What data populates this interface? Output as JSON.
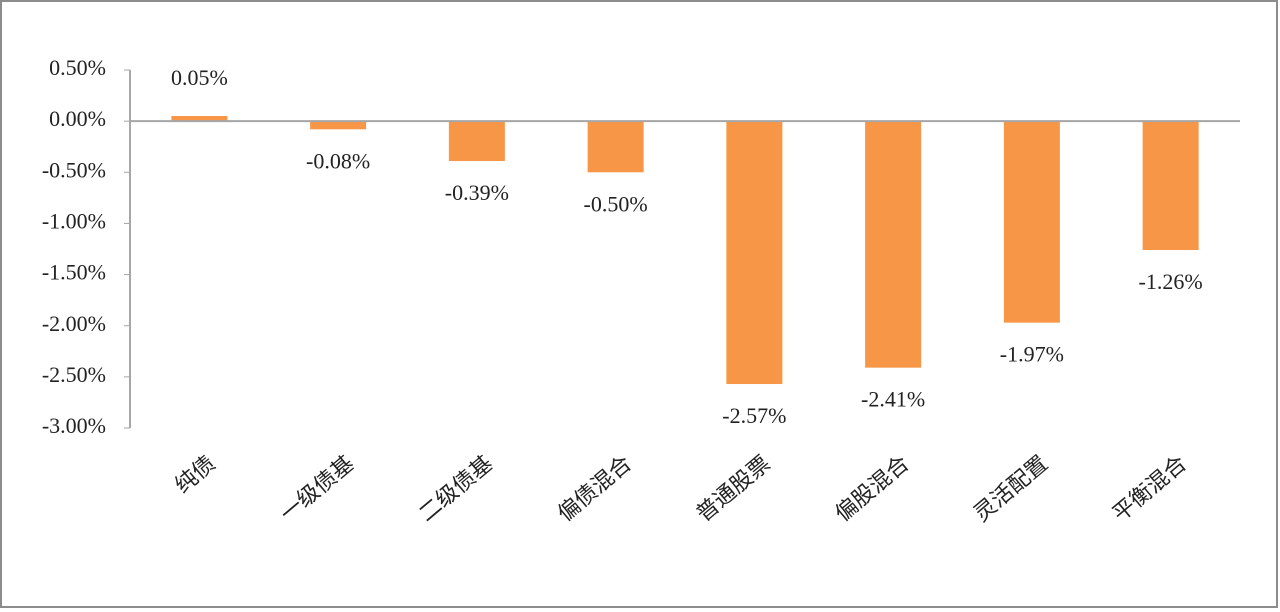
{
  "chart_data": {
    "type": "bar",
    "categories": [
      "纯债",
      "一级债基",
      "二级债基",
      "偏债混合",
      "普通股票",
      "偏股混合",
      "灵活配置",
      "平衡混合"
    ],
    "values": [
      0.05,
      -0.08,
      -0.39,
      -0.5,
      -2.57,
      -2.41,
      -1.97,
      -1.26
    ],
    "value_labels": [
      "0.05%",
      "-0.08%",
      "-0.39%",
      "-0.50%",
      "-2.57%",
      "-2.41%",
      "-1.97%",
      "-1.26%"
    ],
    "color": "#f79646",
    "ylim": [
      -3,
      0.5
    ],
    "yticks": [
      {
        "value": 0.5,
        "label": "0.50%"
      },
      {
        "value": 0,
        "label": "0.00%"
      },
      {
        "value": -0.5,
        "label": "-0.50%"
      },
      {
        "value": -1,
        "label": "-1.00%"
      },
      {
        "value": -1.5,
        "label": "-1.50%"
      },
      {
        "value": -2,
        "label": "-2.00%"
      },
      {
        "value": -2.5,
        "label": "-2.50%"
      },
      {
        "value": -3,
        "label": "-3.00%"
      }
    ],
    "grid": false
  }
}
